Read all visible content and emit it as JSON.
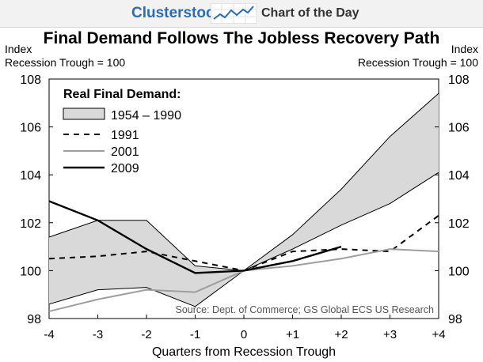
{
  "header": {
    "brand": "Clusterstock",
    "section": "Chart of the Day",
    "logo_icon": "trend-line-icon",
    "brand_color": "#2a6db5"
  },
  "chart_data": {
    "type": "line",
    "title": "Final Demand Follows The Jobless Recovery Path",
    "left_axis_label": [
      "Index",
      "Recession Trough = 100"
    ],
    "right_axis_label": [
      "Index",
      "Recession Trough = 100"
    ],
    "xlabel": "Quarters from Recession Trough",
    "x": [
      -4,
      -3,
      -2,
      -1,
      0,
      1,
      2,
      3,
      4
    ],
    "x_tick_labels": [
      "-4",
      "-3",
      "-2",
      "-1",
      "0",
      "+1",
      "+2",
      "+3",
      "+4"
    ],
    "ylim": [
      98,
      108
    ],
    "y_ticks": [
      98,
      100,
      102,
      104,
      106,
      108
    ],
    "legend_title": "Real Final Demand:",
    "legend_position": "top-left",
    "grid": false,
    "band": {
      "name": "1954 – 1990",
      "upper": [
        101.4,
        102.1,
        102.1,
        100.2,
        100.0,
        101.5,
        103.4,
        105.6,
        107.4
      ],
      "lower": [
        98.6,
        99.2,
        99.3,
        98.5,
        100.0,
        100.9,
        101.9,
        102.8,
        104.1
      ],
      "fill": "#d9d9d9",
      "stroke": "#000000"
    },
    "series": [
      {
        "name": "1991",
        "x": [
          -4,
          -3,
          -2,
          -1,
          0,
          1,
          2,
          3,
          4
        ],
        "values": [
          100.5,
          100.6,
          100.8,
          100.4,
          100.0,
          100.8,
          100.9,
          100.8,
          102.3
        ],
        "style": "dashed",
        "color": "#000000"
      },
      {
        "name": "2001",
        "x": [
          -4,
          -3,
          -2,
          -1,
          0,
          1,
          2,
          3,
          4
        ],
        "values": [
          98.3,
          98.8,
          99.2,
          99.1,
          100.0,
          100.2,
          100.5,
          100.9,
          100.8
        ],
        "style": "solid",
        "color": "#9e9e9e"
      },
      {
        "name": "2009",
        "x": [
          -4,
          -3,
          -2,
          -1,
          0,
          1,
          2
        ],
        "values": [
          102.9,
          102.1,
          100.9,
          99.9,
          100.0,
          100.4,
          101.0
        ],
        "style": "solid",
        "color": "#000000"
      }
    ],
    "source": "Source: Dept. of Commerce; GS Global ECS US Research"
  }
}
